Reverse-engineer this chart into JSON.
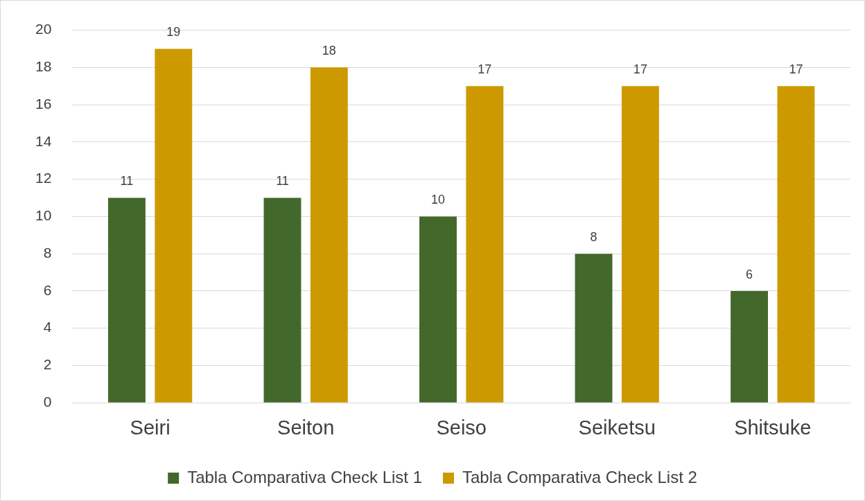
{
  "chart_data": {
    "type": "bar",
    "categories": [
      "Seiri",
      "Seiton",
      "Seiso",
      "Seiketsu",
      "Shitsuke"
    ],
    "series": [
      {
        "name": "Tabla Comparativa Check List 1",
        "color": "#43682b",
        "values": [
          11,
          11,
          10,
          8,
          6
        ]
      },
      {
        "name": "Tabla Comparativa Check List 2",
        "color": "#cc9a00",
        "values": [
          19,
          18,
          17,
          17,
          17
        ]
      }
    ],
    "ylim": [
      0,
      20
    ],
    "yticks": [
      0,
      2,
      4,
      6,
      8,
      10,
      12,
      14,
      16,
      18,
      20
    ],
    "grid": "y",
    "legend": "bottom",
    "data_labels": true
  }
}
